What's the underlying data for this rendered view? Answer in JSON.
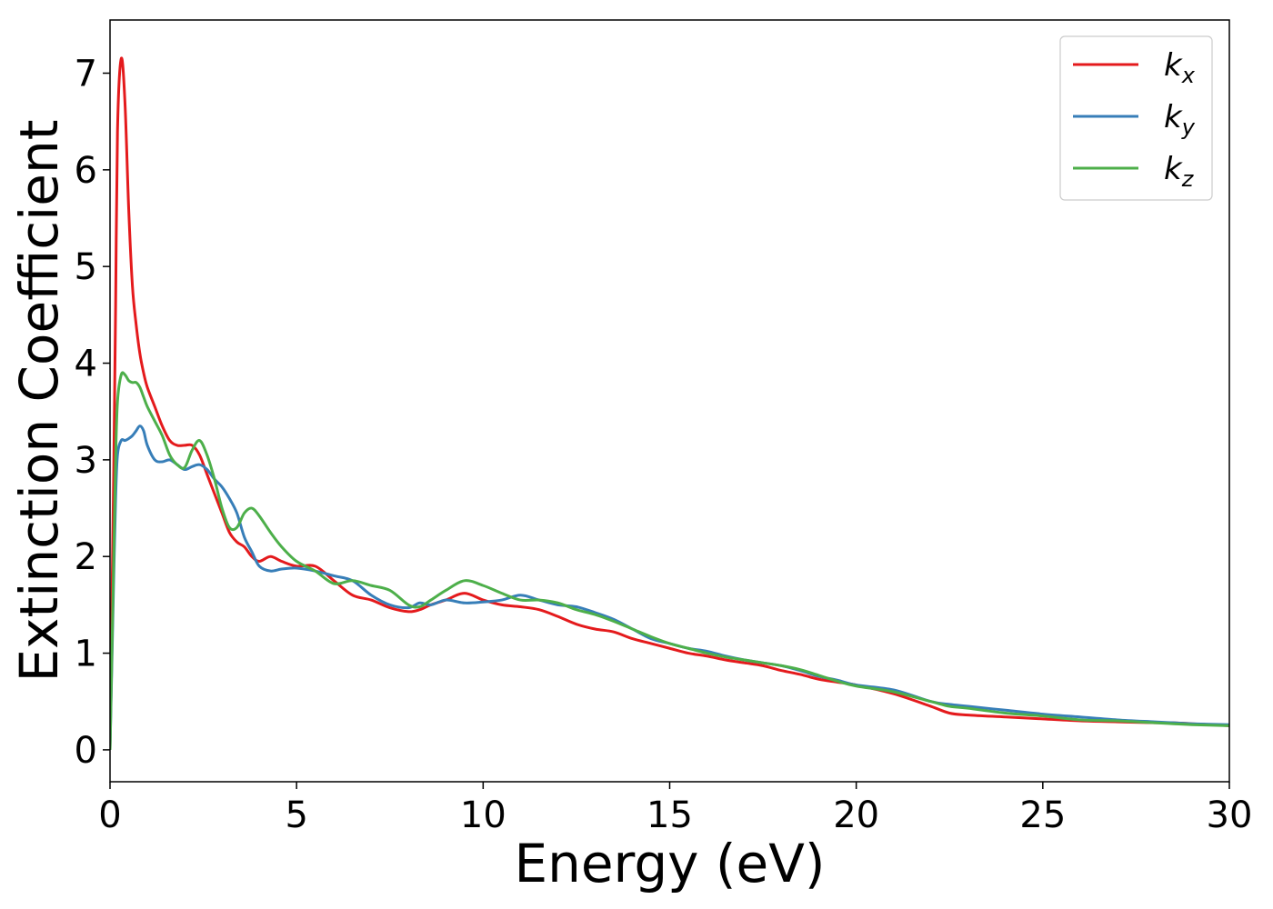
{
  "chart_data": {
    "type": "line",
    "xlabel": "Energy (eV)",
    "ylabel": "Extinction Coefficient",
    "xlim": [
      0,
      30
    ],
    "ylim": [
      -0.33,
      7.55
    ],
    "xticks": [
      0,
      5,
      10,
      15,
      20,
      25,
      30
    ],
    "yticks": [
      0,
      1,
      2,
      3,
      4,
      5,
      6,
      7
    ],
    "grid": false,
    "legend_position": "top-right",
    "series": [
      {
        "name": "k_x",
        "base": "k",
        "sub": "x",
        "color": "#e41a1c",
        "x": [
          0,
          0.05,
          0.1,
          0.15,
          0.2,
          0.3,
          0.4,
          0.5,
          0.6,
          0.7,
          0.8,
          0.9,
          1.0,
          1.2,
          1.4,
          1.6,
          1.8,
          2.0,
          2.2,
          2.4,
          2.6,
          2.8,
          3.0,
          3.2,
          3.4,
          3.6,
          3.8,
          4.0,
          4.3,
          4.6,
          5.0,
          5.5,
          6.0,
          6.5,
          7.0,
          7.5,
          8.0,
          8.3,
          8.6,
          9.0,
          9.5,
          10.0,
          10.5,
          11.0,
          11.5,
          12.0,
          12.5,
          13.0,
          13.5,
          14.0,
          14.5,
          15.0,
          15.5,
          16.0,
          16.5,
          17.0,
          17.5,
          18.0,
          18.5,
          19.0,
          19.5,
          20.0,
          21.0,
          22.0,
          22.5,
          23.0,
          24.0,
          25.0,
          26.0,
          27.0,
          28.0,
          28.5,
          29.0,
          30.0
        ],
        "y": [
          0,
          1.5,
          2.9,
          4.6,
          6.4,
          7.15,
          6.7,
          5.6,
          4.8,
          4.4,
          4.1,
          3.9,
          3.75,
          3.55,
          3.35,
          3.2,
          3.15,
          3.15,
          3.15,
          3.05,
          2.85,
          2.65,
          2.45,
          2.25,
          2.15,
          2.1,
          2.0,
          1.95,
          2.0,
          1.95,
          1.9,
          1.9,
          1.75,
          1.6,
          1.55,
          1.47,
          1.43,
          1.45,
          1.5,
          1.55,
          1.62,
          1.55,
          1.5,
          1.48,
          1.45,
          1.38,
          1.3,
          1.25,
          1.22,
          1.15,
          1.1,
          1.05,
          1.0,
          0.97,
          0.93,
          0.9,
          0.87,
          0.82,
          0.78,
          0.73,
          0.7,
          0.67,
          0.58,
          0.45,
          0.38,
          0.36,
          0.34,
          0.32,
          0.3,
          0.29,
          0.28,
          0.28,
          0.27,
          0.25
        ]
      },
      {
        "name": "k_y",
        "base": "k",
        "sub": "y",
        "color": "#377eb8",
        "x": [
          0,
          0.05,
          0.1,
          0.15,
          0.2,
          0.3,
          0.4,
          0.5,
          0.6,
          0.7,
          0.8,
          0.9,
          1.0,
          1.2,
          1.4,
          1.6,
          1.8,
          2.0,
          2.2,
          2.4,
          2.6,
          2.8,
          3.0,
          3.2,
          3.4,
          3.6,
          3.8,
          4.0,
          4.3,
          4.6,
          5.0,
          5.5,
          6.0,
          6.5,
          7.0,
          7.5,
          8.0,
          8.3,
          8.6,
          9.0,
          9.5,
          10.0,
          10.5,
          11.0,
          11.5,
          12.0,
          12.5,
          13.0,
          13.5,
          14.0,
          14.5,
          15.0,
          15.5,
          16.0,
          16.5,
          17.0,
          17.5,
          18.0,
          18.5,
          19.0,
          19.5,
          20.0,
          21.0,
          22.0,
          22.5,
          23.0,
          24.0,
          25.0,
          26.0,
          27.0,
          28.0,
          28.5,
          29.0,
          30.0
        ],
        "y": [
          0,
          0.9,
          1.8,
          2.6,
          3.05,
          3.2,
          3.2,
          3.22,
          3.25,
          3.3,
          3.35,
          3.3,
          3.15,
          3.0,
          2.98,
          3.0,
          2.95,
          2.9,
          2.93,
          2.95,
          2.9,
          2.8,
          2.72,
          2.6,
          2.45,
          2.2,
          2.05,
          1.9,
          1.85,
          1.87,
          1.88,
          1.85,
          1.8,
          1.75,
          1.6,
          1.5,
          1.47,
          1.52,
          1.5,
          1.55,
          1.52,
          1.53,
          1.55,
          1.6,
          1.55,
          1.5,
          1.48,
          1.42,
          1.35,
          1.25,
          1.15,
          1.1,
          1.05,
          1.02,
          0.97,
          0.93,
          0.9,
          0.87,
          0.82,
          0.76,
          0.72,
          0.67,
          0.62,
          0.5,
          0.47,
          0.45,
          0.41,
          0.37,
          0.34,
          0.31,
          0.29,
          0.28,
          0.27,
          0.26
        ]
      },
      {
        "name": "k_z",
        "base": "k",
        "sub": "z",
        "color": "#4daf4a",
        "x": [
          0,
          0.05,
          0.1,
          0.15,
          0.2,
          0.3,
          0.4,
          0.5,
          0.6,
          0.7,
          0.8,
          0.9,
          1.0,
          1.2,
          1.4,
          1.6,
          1.8,
          2.0,
          2.2,
          2.4,
          2.6,
          2.8,
          3.0,
          3.2,
          3.4,
          3.6,
          3.8,
          4.0,
          4.3,
          4.6,
          5.0,
          5.5,
          6.0,
          6.5,
          7.0,
          7.5,
          8.0,
          8.3,
          8.6,
          9.0,
          9.5,
          10.0,
          10.5,
          11.0,
          11.5,
          12.0,
          12.5,
          13.0,
          13.5,
          14.0,
          14.5,
          15.0,
          15.5,
          16.0,
          16.5,
          17.0,
          17.5,
          18.0,
          18.5,
          19.0,
          19.5,
          20.0,
          21.0,
          22.0,
          22.5,
          23.0,
          24.0,
          25.0,
          26.0,
          27.0,
          28.0,
          28.5,
          29.0,
          30.0
        ],
        "y": [
          0,
          1.0,
          2.0,
          3.0,
          3.6,
          3.88,
          3.88,
          3.82,
          3.8,
          3.8,
          3.75,
          3.65,
          3.55,
          3.4,
          3.25,
          3.05,
          2.95,
          2.92,
          3.1,
          3.2,
          3.05,
          2.8,
          2.5,
          2.3,
          2.3,
          2.45,
          2.5,
          2.42,
          2.25,
          2.1,
          1.95,
          1.85,
          1.72,
          1.75,
          1.7,
          1.65,
          1.5,
          1.48,
          1.55,
          1.65,
          1.75,
          1.7,
          1.62,
          1.55,
          1.55,
          1.52,
          1.45,
          1.4,
          1.33,
          1.25,
          1.17,
          1.1,
          1.05,
          1.0,
          0.96,
          0.93,
          0.9,
          0.87,
          0.83,
          0.77,
          0.71,
          0.66,
          0.6,
          0.5,
          0.45,
          0.43,
          0.38,
          0.35,
          0.31,
          0.3,
          0.28,
          0.27,
          0.26,
          0.25
        ]
      }
    ]
  }
}
